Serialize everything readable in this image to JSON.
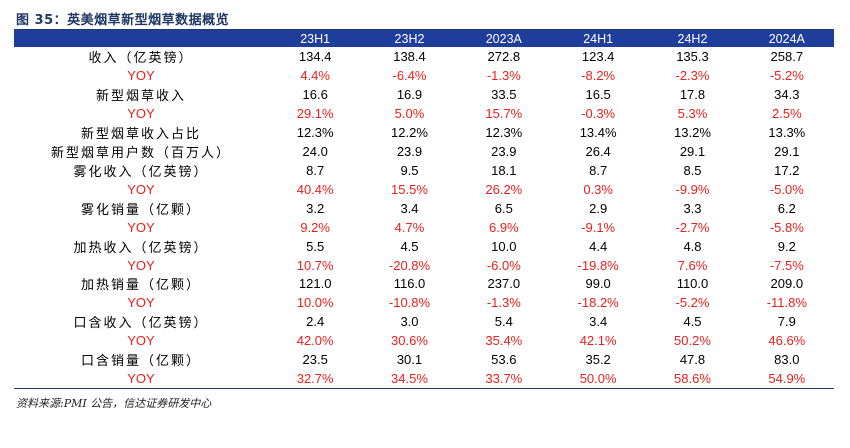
{
  "title": "图 35：英美烟草新型烟草数据概览",
  "table": {
    "columns": [
      "",
      "23H1",
      "23H2",
      "2023A",
      "24H1",
      "24H2",
      "2024A"
    ],
    "rows": [
      {
        "label": "收入（亿英镑）",
        "type": "metric",
        "values": [
          "134.4",
          "138.4",
          "272.8",
          "123.4",
          "135.3",
          "258.7"
        ]
      },
      {
        "label": "YOY",
        "type": "yoy",
        "values": [
          "4.4%",
          "-6.4%",
          "-1.3%",
          "-8.2%",
          "-2.3%",
          "-5.2%"
        ]
      },
      {
        "label": "新型烟草收入",
        "type": "metric",
        "values": [
          "16.6",
          "16.9",
          "33.5",
          "16.5",
          "17.8",
          "34.3"
        ]
      },
      {
        "label": "YOY",
        "type": "yoy",
        "values": [
          "29.1%",
          "5.0%",
          "15.7%",
          "-0.3%",
          "5.3%",
          "2.5%"
        ]
      },
      {
        "label": "新型烟草收入占比",
        "type": "metric",
        "values": [
          "12.3%",
          "12.2%",
          "12.3%",
          "13.4%",
          "13.2%",
          "13.3%"
        ]
      },
      {
        "label": "新型烟草用户数（百万人）",
        "type": "metric",
        "values": [
          "24.0",
          "23.9",
          "23.9",
          "26.4",
          "29.1",
          "29.1"
        ]
      },
      {
        "label": "雾化收入（亿英镑）",
        "type": "metric",
        "values": [
          "8.7",
          "9.5",
          "18.1",
          "8.7",
          "8.5",
          "17.2"
        ]
      },
      {
        "label": "YOY",
        "type": "yoy",
        "values": [
          "40.4%",
          "15.5%",
          "26.2%",
          "0.3%",
          "-9.9%",
          "-5.0%"
        ]
      },
      {
        "label": "雾化销量（亿颗）",
        "type": "metric",
        "values": [
          "3.2",
          "3.4",
          "6.5",
          "2.9",
          "3.3",
          "6.2"
        ]
      },
      {
        "label": "YOY",
        "type": "yoy",
        "values": [
          "9.2%",
          "4.7%",
          "6.9%",
          "-9.1%",
          "-2.7%",
          "-5.8%"
        ]
      },
      {
        "label": "加热收入（亿英镑）",
        "type": "metric",
        "values": [
          "5.5",
          "4.5",
          "10.0",
          "4.4",
          "4.8",
          "9.2"
        ]
      },
      {
        "label": "YOY",
        "type": "yoy",
        "values": [
          "10.7%",
          "-20.8%",
          "-6.0%",
          "-19.8%",
          "7.6%",
          "-7.5%"
        ]
      },
      {
        "label": "加热销量（亿颗）",
        "type": "metric",
        "values": [
          "121.0",
          "116.0",
          "237.0",
          "99.0",
          "110.0",
          "209.0"
        ]
      },
      {
        "label": "YOY",
        "type": "yoy",
        "values": [
          "10.0%",
          "-10.8%",
          "-1.3%",
          "-18.2%",
          "-5.2%",
          "-11.8%"
        ]
      },
      {
        "label": "口含收入（亿英镑）",
        "type": "metric",
        "values": [
          "2.4",
          "3.0",
          "5.4",
          "3.4",
          "4.5",
          "7.9"
        ]
      },
      {
        "label": "YOY",
        "type": "yoy",
        "values": [
          "42.0%",
          "30.6%",
          "35.4%",
          "42.1%",
          "50.2%",
          "46.6%"
        ]
      },
      {
        "label": "口含销量（亿颗）",
        "type": "metric",
        "values": [
          "23.5",
          "30.1",
          "53.6",
          "35.2",
          "47.8",
          "83.0"
        ]
      },
      {
        "label": "YOY",
        "type": "yoy",
        "values": [
          "32.7%",
          "34.5%",
          "33.7%",
          "50.0%",
          "58.6%",
          "54.9%"
        ]
      }
    ]
  },
  "source": "资料来源:PMI 公告，信达证券研发中心",
  "colors": {
    "header_bg": "#1f3d9a",
    "title": "#1f3864",
    "yoy_text": "#e8211c"
  }
}
